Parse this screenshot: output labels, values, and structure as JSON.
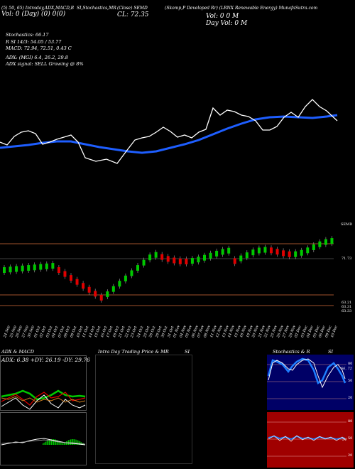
{
  "header": {
    "line1": [
      "(5) 50, 65) Intraday,ADX,MACD,B",
      "SI,Stochastics,MR",
      "(Close) SEMD",
      "(Skomp,P Developed Rr) (LRNX Renewable Energy) MunafaSutra.com"
    ],
    "line2": [
      "Vol: 0 (Day)   (0) 0(0)",
      "CL: 72.35"
    ],
    "vol_label": "Vol: 0 0 M",
    "dayvol_label": "Day Vol: 0   M"
  },
  "info": {
    "stoch": "Stochastics: 66.17",
    "rsi": "R          SI 14/3: 54.05 / 53.77",
    "macd": "MACD: 72.94,  72.51,  0.43 C",
    "adx": "ADX:                          (MGI) 6.4,  26.2,  29.8",
    "adx_signal": "ADX  signal: SELL  Growing @ 8%"
  },
  "price_panel": {
    "label_top": "SEMD",
    "label_mid": "71.73",
    "label_low1": "63.21",
    "label_low2": "63.31",
    "label_low3": "63.33"
  },
  "dates": [
    "24 Sep",
    "25 Sep",
    "26 Sep",
    "27 Sep",
    "30 Sep",
    "01 Oct",
    "02 Oct",
    "03 Oct",
    "04 Oct",
    "07 Oct",
    "08 Oct",
    "09 Oct",
    "10 Oct",
    "11 Oct",
    "14 Oct",
    "15 Oct",
    "16 Oct",
    "17 Oct",
    "18 Oct",
    "21 Oct",
    "22 Oct",
    "23 Oct",
    "24 Oct",
    "25 Oct",
    "28 Oct",
    "29 Oct",
    "30 Oct",
    "31 Oct",
    "01 Nov",
    "04 Nov",
    "05 Nov",
    "06 Nov",
    "07 Nov",
    "08 Nov",
    "11 Nov",
    "12 Nov",
    "13 Nov",
    "14 Nov",
    "15 Nov",
    "18 Nov",
    "19 Nov",
    "20 Nov",
    "21 Nov",
    "22 Nov",
    "25 Nov",
    "26 Nov",
    "27 Nov",
    "29 Nov",
    "02 Dec",
    "03 Dec",
    "04 Dec",
    "05 Dec",
    "06 Dec",
    "09 Dec",
    "10 Dec"
  ],
  "bottom": {
    "adx_title": "ADX  & MACD",
    "adx_values": "ADX: 6.38  +DY: 26.19 -DY: 29.76",
    "intraday_title": "Intra  Day Trading Price  & MR",
    "intraday_title2": "SI",
    "stoch_title": "Stochastics & R",
    "stoch_title2": "SI",
    "stoch_ticks": [
      "80",
      "50",
      "20"
    ],
    "rsi_ticks": [
      "80",
      "50",
      "20"
    ],
    "stoch_val": "66, 72",
    "rsi_val": "54"
  },
  "colors": {
    "ma": "#1e5eff",
    "up": "#00c800",
    "down": "#e00000",
    "band": "#a0522d"
  }
}
